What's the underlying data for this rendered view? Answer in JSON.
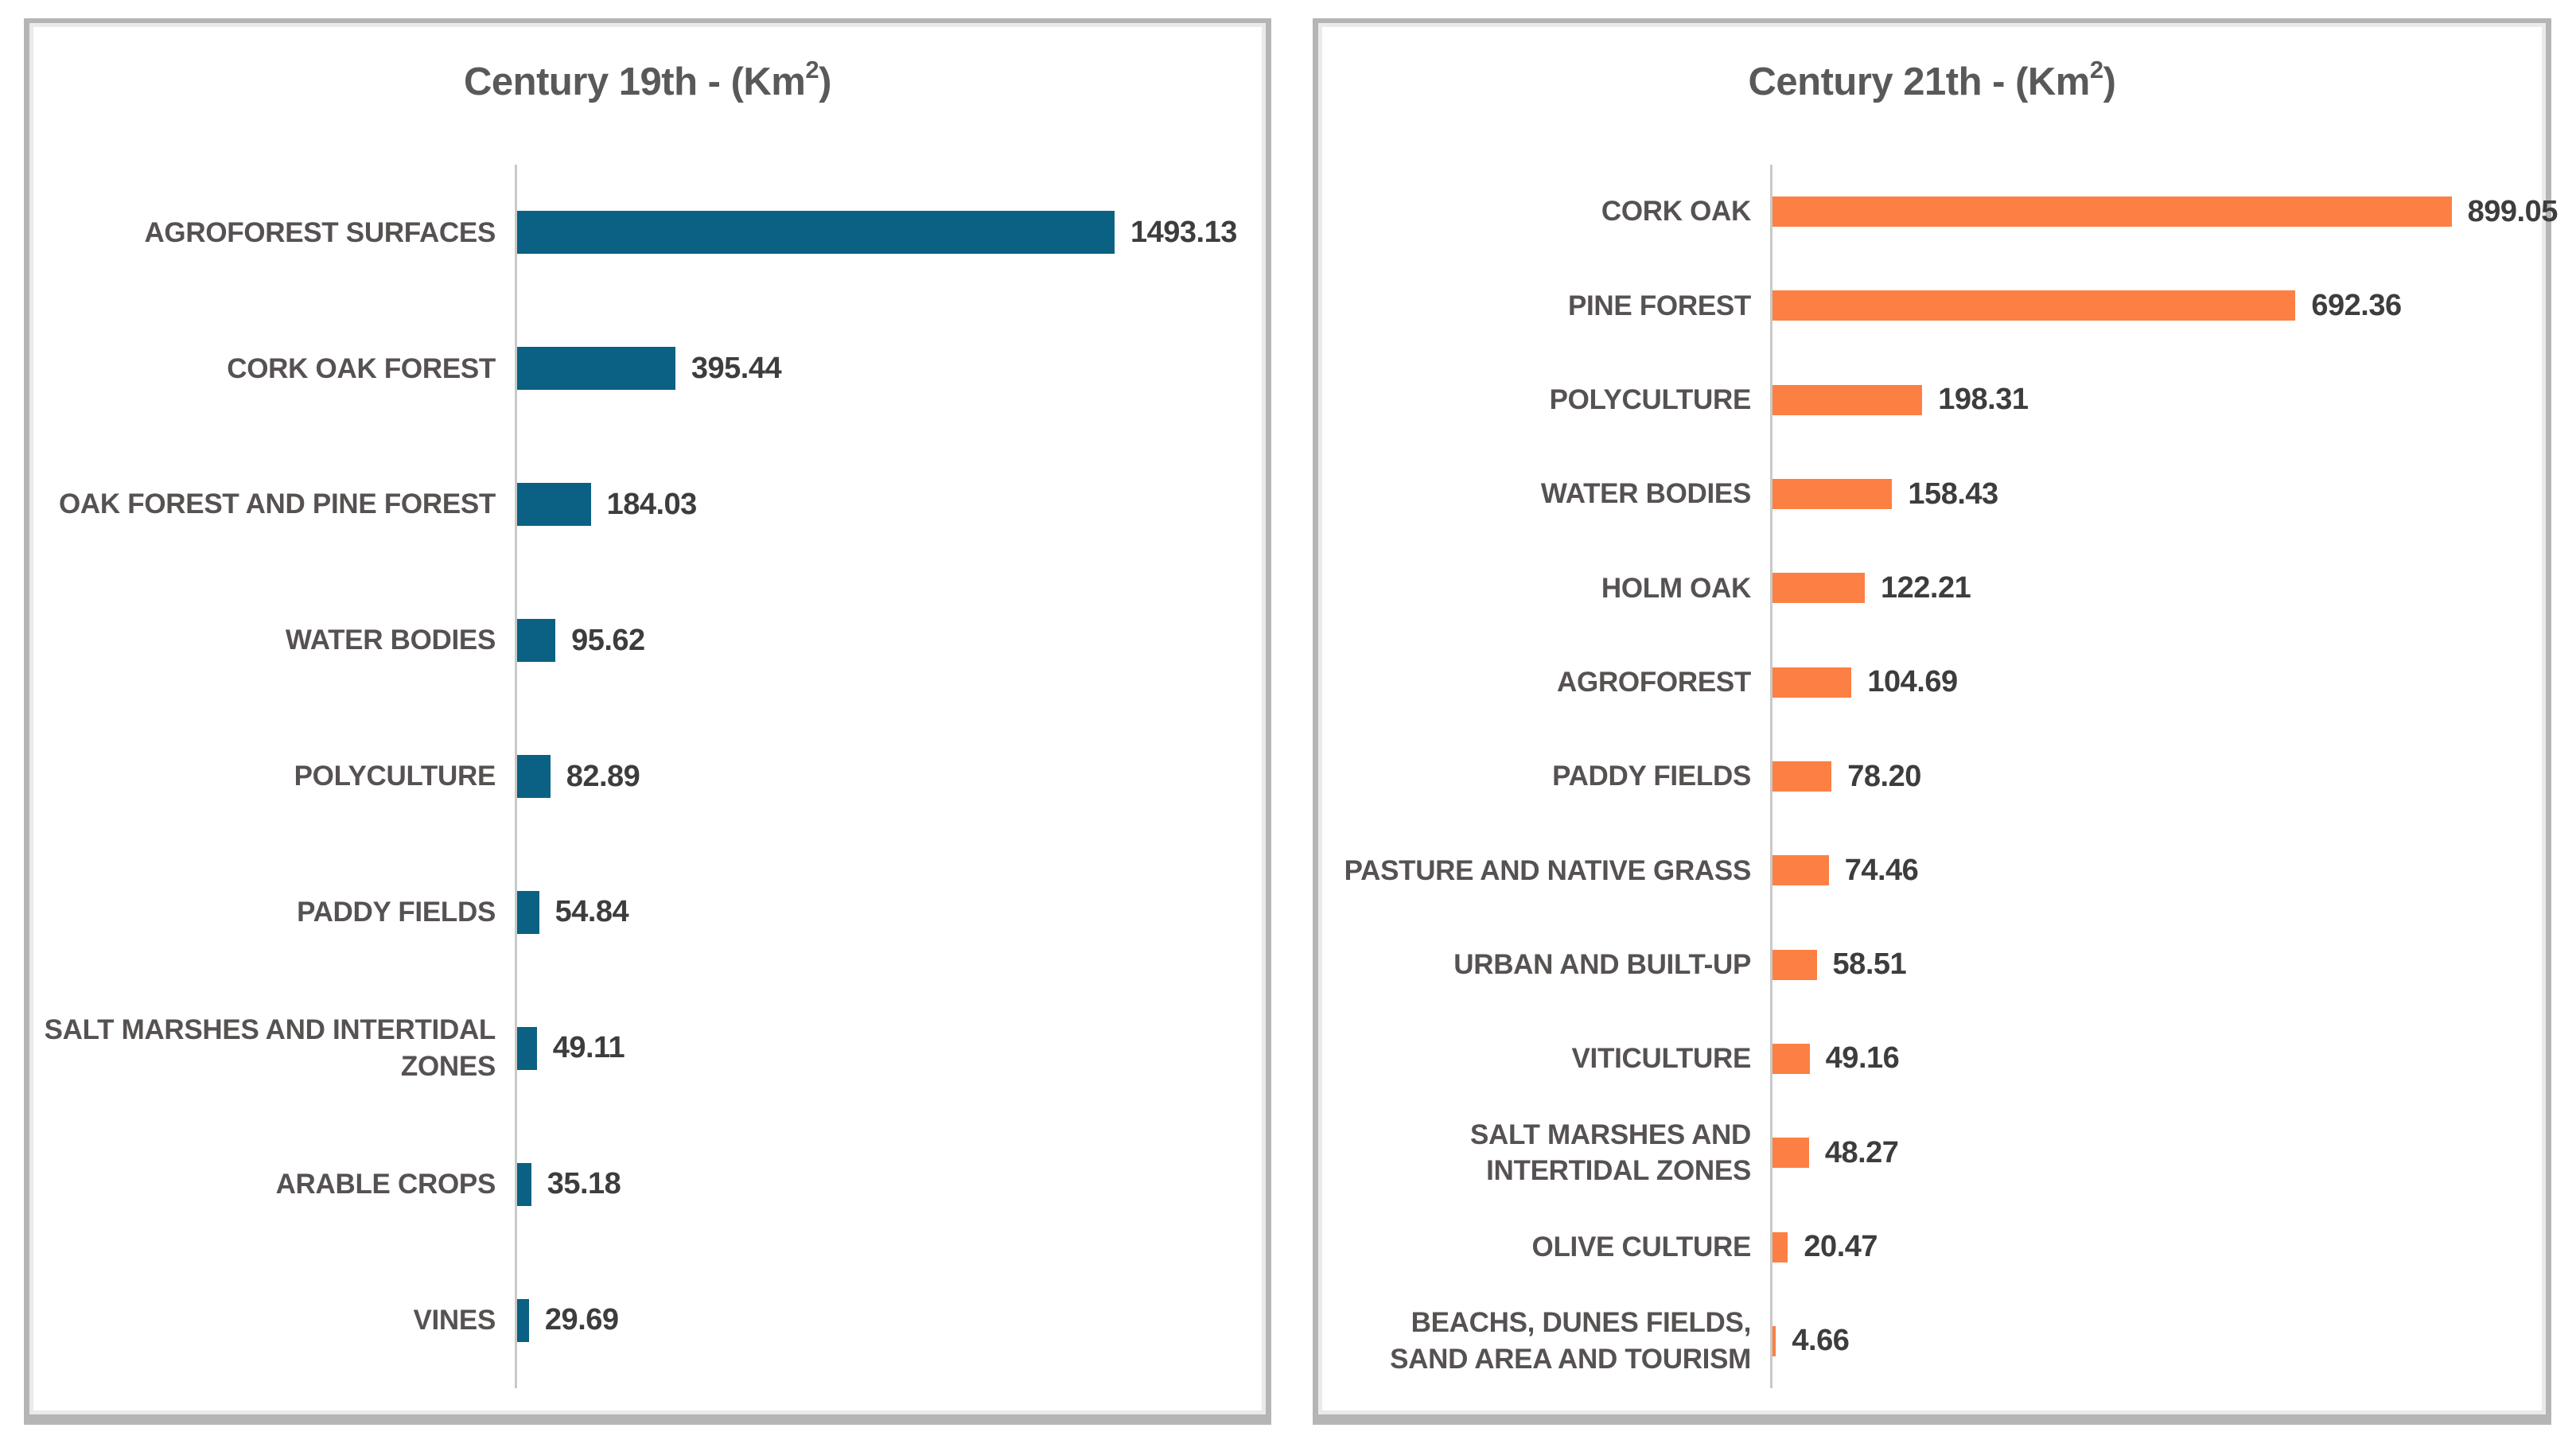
{
  "chart_data": [
    {
      "type": "bar",
      "orientation": "horizontal",
      "title": "Century 19th - (Km²)",
      "title_prefix": "Century 19th - (Km",
      "title_sup": "2",
      "title_suffix": ")",
      "bar_color": "#0a6183",
      "category_label_color": "#575252",
      "value_label_color": "#3d3d3d",
      "legend": "none",
      "grid": "off",
      "xlim": [
        0,
        1845
      ],
      "value_axis_labels": "hidden",
      "categories": [
        "AGROFOREST SURFACES",
        "CORK OAK FOREST",
        "OAK FOREST AND PINE FOREST",
        "WATER BODIES",
        "POLYCULTURE",
        "PADDY FIELDS",
        "SALT MARSHES AND INTERTIDAL ZONES",
        "ARABLE CROPS",
        "VINES"
      ],
      "values": [
        1493.13,
        395.44,
        184.03,
        95.62,
        82.89,
        54.84,
        49.11,
        35.18,
        29.69
      ],
      "value_labels": [
        "1493.13",
        "395.44",
        "184.03",
        "95.62",
        "82.89",
        "54.84",
        "49.11",
        "35.18",
        "29.69"
      ]
    },
    {
      "type": "bar",
      "orientation": "horizontal",
      "title": "Century 21th - (Km²)",
      "title_prefix": "Century 21th - (Km",
      "title_sup": "2",
      "title_suffix": ")",
      "bar_color": "#fc8043",
      "category_label_color": "#575252",
      "value_label_color": "#3d3d3d",
      "legend": "none",
      "grid": "off",
      "xlim": [
        0,
        1010
      ],
      "value_axis_labels": "hidden",
      "categories": [
        "CORK OAK",
        "PINE FOREST",
        "POLYCULTURE",
        "WATER BODIES",
        "HOLM OAK",
        "AGROFOREST",
        "PADDY FIELDS",
        "PASTURE AND NATIVE GRASS",
        "URBAN AND BUILT-UP",
        "VITICULTURE",
        "SALT MARSHES AND INTERTIDAL ZONES",
        "OLIVE CULTURE",
        "BEACHS, DUNES FIELDS, SAND AREA AND TOURISM"
      ],
      "values": [
        899.05,
        692.36,
        198.31,
        158.43,
        122.21,
        104.69,
        78.2,
        74.46,
        58.51,
        49.16,
        48.27,
        20.47,
        4.66
      ],
      "value_labels": [
        "899.05",
        "692.36",
        "198.31",
        "158.43",
        "122.21",
        "104.69",
        "78.20",
        "74.46",
        "58.51",
        "49.16",
        "48.27",
        "20.47",
        "4.66"
      ]
    }
  ]
}
